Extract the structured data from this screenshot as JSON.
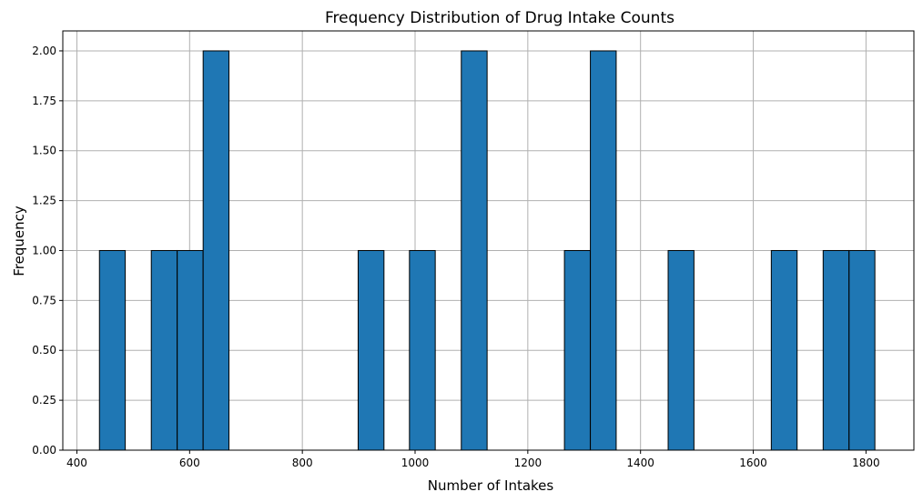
{
  "chart_data": {
    "type": "bar",
    "title": "Frequency Distribution of Drug Intake Counts",
    "xlabel": "Number of Intakes",
    "ylabel": "Frequency",
    "xlim": [
      375,
      1885
    ],
    "ylim": [
      0,
      2.1
    ],
    "xticks": [
      400,
      600,
      800,
      1000,
      1200,
      1400,
      1600,
      1800
    ],
    "xtick_labels": [
      "400",
      "600",
      "800",
      "1000",
      "1200",
      "1400",
      "1600",
      "1800"
    ],
    "yticks": [
      0,
      0.25,
      0.5,
      0.75,
      1.0,
      1.25,
      1.5,
      1.75,
      2.0
    ],
    "ytick_labels": [
      "0.00",
      "0.25",
      "0.50",
      "0.75",
      "1.00",
      "1.25",
      "1.50",
      "1.75",
      "2.00"
    ],
    "grid": true,
    "bin_width": 45.8,
    "bins": [
      {
        "start": 440,
        "count": 1
      },
      {
        "start": 532,
        "count": 1
      },
      {
        "start": 578,
        "count": 1
      },
      {
        "start": 624,
        "count": 2
      },
      {
        "start": 899,
        "count": 1
      },
      {
        "start": 990,
        "count": 1
      },
      {
        "start": 1082,
        "count": 2
      },
      {
        "start": 1265,
        "count": 1
      },
      {
        "start": 1311,
        "count": 2
      },
      {
        "start": 1449,
        "count": 1
      },
      {
        "start": 1632,
        "count": 1
      },
      {
        "start": 1724,
        "count": 1
      },
      {
        "start": 1770,
        "count": 1
      }
    ],
    "colors": {
      "bar_fill": "#1f77b4",
      "bar_edge": "#000000",
      "grid": "#b0b0b0"
    }
  }
}
